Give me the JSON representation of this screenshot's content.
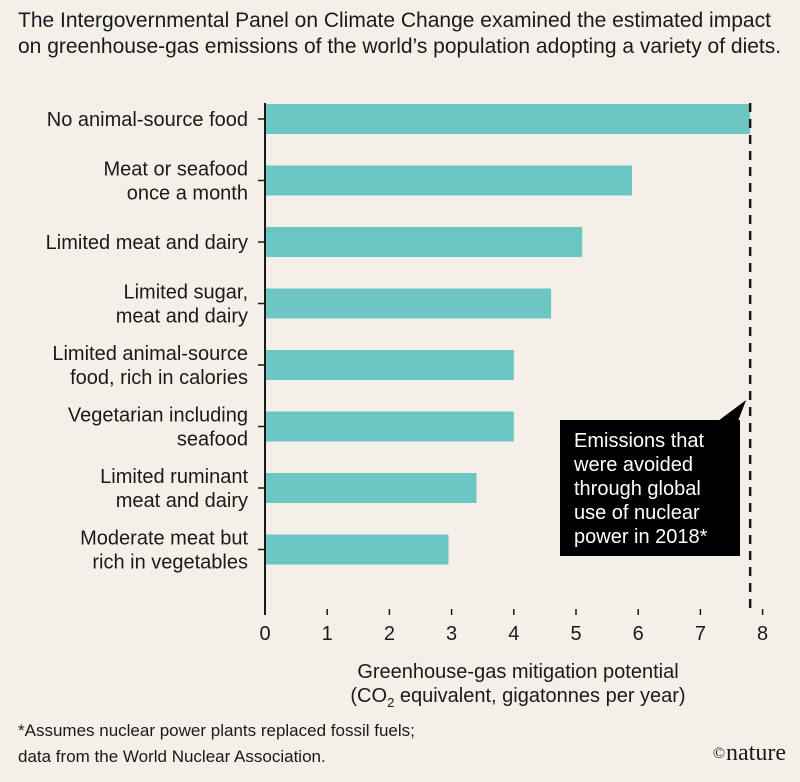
{
  "intro": "The Intergovernmental Panel on Climate Change examined the estimated impact on greenhouse-gas emissions of the world’s population adopting a variety of diets.",
  "chart_data": {
    "type": "bar",
    "orientation": "horizontal",
    "categories": [
      [
        "No animal-source food"
      ],
      [
        "Meat or seafood",
        "once a month"
      ],
      [
        "Limited meat and dairy"
      ],
      [
        "Limited sugar,",
        "meat and dairy"
      ],
      [
        "Limited animal-source",
        "food, rich in calories"
      ],
      [
        "Vegetarian including",
        "seafood"
      ],
      [
        "Limited ruminant",
        "meat and dairy"
      ],
      [
        "Moderate meat but",
        "rich in vegetables"
      ]
    ],
    "values": [
      7.8,
      5.9,
      5.1,
      4.6,
      4.0,
      4.0,
      3.4,
      2.95
    ],
    "bar_color": "#6cc7c2",
    "xlim": [
      0,
      8
    ],
    "xticks": [
      0,
      1,
      2,
      3,
      4,
      5,
      6,
      7,
      8
    ],
    "xlabel": {
      "line1": "Greenhouse-gas mitigation potential",
      "line2_before": "(CO",
      "line2_sub": "2",
      "line2_after": " equivalent, gigatonnes per year)"
    },
    "reference_line": {
      "value": 7.8,
      "style": "dashed",
      "annotation": [
        "Emissions that",
        "were avoided",
        "through global",
        "use of nuclear",
        "power in 2018*"
      ]
    },
    "grid": false
  },
  "footnote": {
    "line1": "*Assumes nuclear power plants replaced fossil fuels;",
    "line2": "data from the World Nuclear Association."
  },
  "credit": {
    "symbol": "©",
    "name": "nature"
  }
}
